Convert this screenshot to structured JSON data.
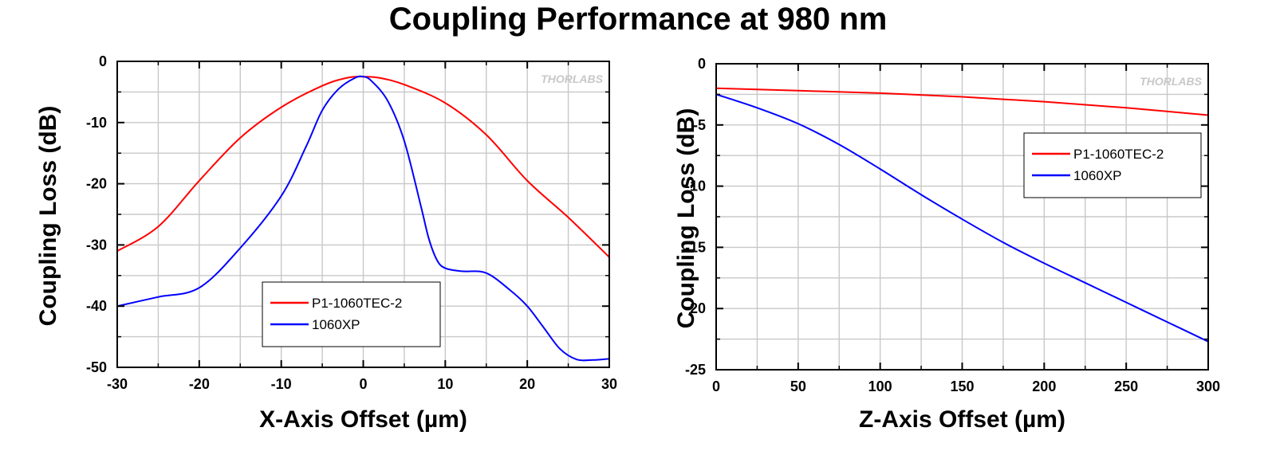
{
  "title": "Coupling Performance at 980 nm",
  "watermark": "THORLABS",
  "colors": {
    "P1-1060TEC-2": "#ff0000",
    "1060XP": "#0000ff",
    "grid": "#c8c8c8",
    "axis": "#000000"
  },
  "chart_data": [
    {
      "type": "line",
      "xlabel": "X-Axis Offset (µm)",
      "ylabel": "Coupling Loss (dB)",
      "xlim": [
        -30,
        30
      ],
      "ylim": [
        -50,
        0
      ],
      "xticks": [
        -30,
        -20,
        -10,
        0,
        10,
        20,
        30
      ],
      "yticks": [
        0,
        -10,
        -20,
        -30,
        -40,
        -50
      ],
      "grid": true,
      "legend_position": "bottom-center",
      "series": [
        {
          "name": "P1-1060TEC-2",
          "color": "#ff0000",
          "x": [
            -30,
            -25,
            -20,
            -15,
            -10,
            -5,
            -2,
            0,
            2,
            5,
            10,
            15,
            20,
            25,
            30
          ],
          "y": [
            -31,
            -27,
            -19.5,
            -12.5,
            -7.5,
            -4,
            -2.7,
            -2.5,
            -2.7,
            -3.8,
            -6.8,
            -12,
            -19.5,
            -25.5,
            -32
          ]
        },
        {
          "name": "1060XP",
          "color": "#0000ff",
          "x": [
            -30,
            -25,
            -20,
            -15,
            -10,
            -7,
            -5,
            -3,
            -1,
            0,
            1,
            3,
            5,
            7,
            8,
            9,
            10,
            12,
            15,
            18,
            20,
            22,
            24,
            26,
            28,
            30
          ],
          "y": [
            -40,
            -38.5,
            -37,
            -30.5,
            -22,
            -14,
            -8,
            -4.5,
            -2.7,
            -2.5,
            -3.2,
            -6.5,
            -13,
            -23.5,
            -29,
            -32.5,
            -33.8,
            -34.3,
            -34.6,
            -37.5,
            -40,
            -43.5,
            -47,
            -48.7,
            -48.8,
            -48.6
          ]
        }
      ]
    },
    {
      "type": "line",
      "xlabel": "Z-Axis Offset (µm)",
      "ylabel": "Coupling Loss (dB)",
      "xlim": [
        0,
        300
      ],
      "ylim": [
        -25,
        0
      ],
      "xticks": [
        0,
        50,
        100,
        150,
        200,
        250,
        300
      ],
      "yticks": [
        0,
        -5,
        -10,
        -15,
        -20,
        -25
      ],
      "grid": true,
      "legend_position": "top-right",
      "series": [
        {
          "name": "P1-1060TEC-2",
          "color": "#ff0000",
          "x": [
            0,
            50,
            100,
            150,
            200,
            250,
            300
          ],
          "y": [
            -2.0,
            -2.2,
            -2.4,
            -2.7,
            -3.1,
            -3.6,
            -4.2
          ]
        },
        {
          "name": "1060XP",
          "color": "#0000ff",
          "x": [
            0,
            25,
            50,
            75,
            100,
            125,
            150,
            175,
            200,
            225,
            250,
            275,
            300
          ],
          "y": [
            -2.5,
            -3.6,
            -4.9,
            -6.6,
            -8.6,
            -10.7,
            -12.7,
            -14.6,
            -16.3,
            -17.9,
            -19.5,
            -21.1,
            -22.7
          ]
        }
      ]
    }
  ]
}
